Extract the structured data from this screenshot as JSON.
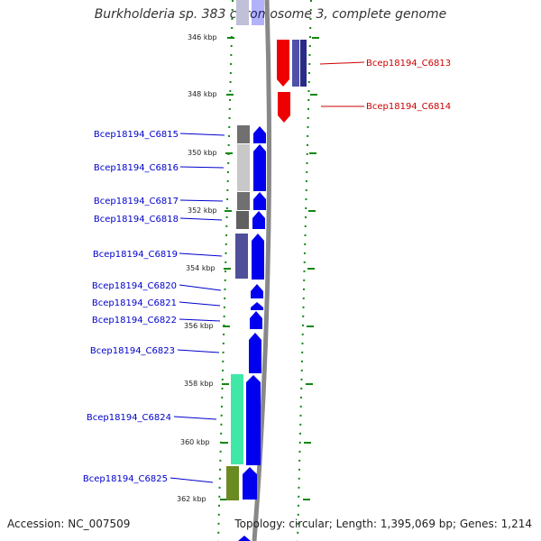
{
  "title": "Burkholderia sp. 383 chromosome 3, complete genome",
  "footer": {
    "accession": "Accession: NC_007509",
    "summary": "Topology: circular; Length: 1,395,069 bp; Genes: 1,214"
  },
  "ruler_labels": [
    "346 kbp",
    "348 kbp",
    "350 kbp",
    "352 kbp",
    "354 kbp",
    "356 kbp",
    "358 kbp",
    "360 kbp",
    "362 kbp"
  ],
  "genes_left": [
    "Bcep18194_C6815",
    "Bcep18194_C6816",
    "Bcep18194_C6817",
    "Bcep18194_C6818",
    "Bcep18194_C6819",
    "Bcep18194_C6820",
    "Bcep18194_C6821",
    "Bcep18194_C6822",
    "Bcep18194_C6823",
    "Bcep18194_C6824",
    "Bcep18194_C6825"
  ],
  "genes_right": [
    "Bcep18194_C6813",
    "Bcep18194_C6814"
  ],
  "colors": {
    "forward_gene": "#0000ee",
    "reverse_gene": "#ee0000",
    "ruler_tick": "#118811",
    "backbone": "#888888",
    "label_left": "#0000cc",
    "label_right": "#cc0000"
  }
}
